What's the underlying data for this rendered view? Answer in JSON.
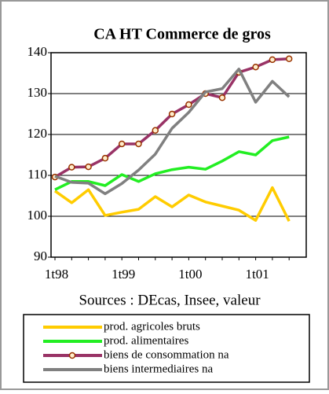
{
  "chart_data": {
    "type": "line",
    "title": "CA HT  Commerce de gros",
    "annotation": "Sources : DEcas, Insee, valeur",
    "categories": [
      "1t98",
      null,
      null,
      null,
      "1t99",
      null,
      null,
      null,
      "1t00",
      null,
      null,
      null,
      "1t01",
      null,
      null
    ],
    "series": [
      {
        "name": "prod. agricoles bruts",
        "color": "#ffcc00",
        "values": [
          106.2,
          103.3,
          106.5,
          100.2,
          101,
          101.7,
          104.8,
          102.3,
          105.2,
          103.5,
          102.5,
          101.5,
          99,
          107,
          98.8
        ]
      },
      {
        "name": "prod. alimentaires",
        "color": "#22ee22",
        "values": [
          106.5,
          108.5,
          108.5,
          107.5,
          110.2,
          108.5,
          110.4,
          111.4,
          112,
          111.5,
          113.5,
          115.8,
          115,
          118.5,
          119.4
        ]
      },
      {
        "name": "biens de consommation na",
        "color": "#993366",
        "marker": "circle",
        "values": [
          109.6,
          112,
          112.1,
          114.2,
          117.7,
          117.7,
          121,
          125,
          127.3,
          130,
          129,
          135.2,
          136.5,
          138.3,
          138.5
        ]
      },
      {
        "name": "biens intermediaires na",
        "color": "#808080",
        "values": [
          109.8,
          108.3,
          108.1,
          105.5,
          108,
          111.3,
          115.2,
          121.5,
          125.4,
          130.4,
          131.2,
          136,
          127.9,
          133,
          129.2
        ]
      }
    ],
    "ylim": [
      90,
      140
    ],
    "yticks": [
      90,
      100,
      110,
      120,
      130,
      140
    ],
    "grid": true
  }
}
